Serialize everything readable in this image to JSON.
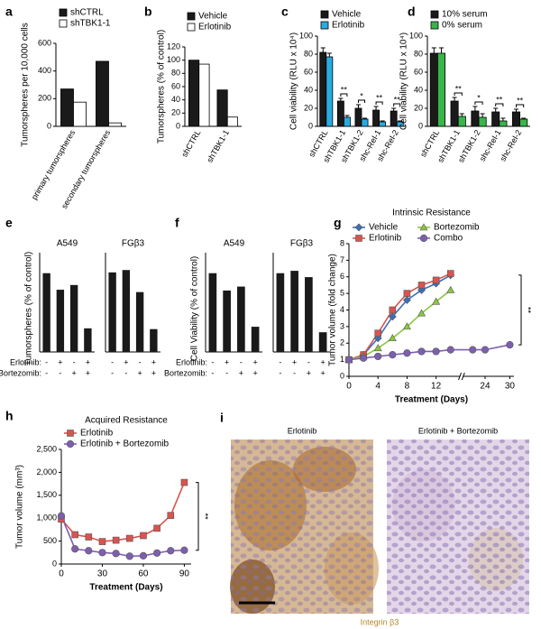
{
  "chart_data": [
    {
      "type": "bar",
      "label": "a",
      "ylabel": "Tumorspheres per 10,000 cells",
      "categories": [
        "primary tumorspheres",
        "secondary tumorspheres"
      ],
      "series": [
        {
          "name": "shCTRL",
          "color": "#1a1a1a",
          "values": [
            270,
            470
          ]
        },
        {
          "name": "shTBK1-1",
          "color": "#ffffff",
          "values": [
            175,
            25
          ]
        }
      ],
      "ylim": [
        0,
        600
      ],
      "yticks": [
        0,
        200,
        400,
        600
      ]
    },
    {
      "type": "bar",
      "label": "b",
      "ylabel": "Tumorspheres (% of control)",
      "categories": [
        "shCTRL",
        "shTBK1-1"
      ],
      "series": [
        {
          "name": "Vehicle",
          "color": "#1a1a1a",
          "values": [
            100,
            55
          ]
        },
        {
          "name": "Erlotinib",
          "color": "#ffffff",
          "values": [
            94,
            14
          ]
        }
      ],
      "ylim": [
        0,
        120
      ],
      "yticks": [
        0,
        20,
        40,
        60,
        80,
        100,
        120
      ]
    },
    {
      "type": "bar",
      "label": "c",
      "ylabel": "Cell viability (RLU x 10⁴)",
      "categories": [
        "shCTRL",
        "shTBK1-1",
        "shTBK1-2",
        "shc-Rel-1",
        "shc-Rel-2"
      ],
      "series": [
        {
          "name": "Vehicle",
          "color": "#1a1a1a",
          "values": [
            82,
            28,
            20,
            18,
            17
          ],
          "errors": [
            5,
            3,
            4,
            4,
            3
          ]
        },
        {
          "name": "Erlotinib",
          "color": "#29abe2",
          "values": [
            77,
            10,
            8,
            5,
            5
          ],
          "errors": [
            4,
            2,
            1,
            1,
            1
          ]
        }
      ],
      "significance": [
        null,
        "**",
        "*",
        "**",
        "**"
      ],
      "ylim": [
        0,
        100
      ],
      "yticks": [
        0,
        20,
        40,
        60,
        80,
        100
      ]
    },
    {
      "type": "bar",
      "label": "d",
      "ylabel": "Cell viability (RLU x 10⁴)",
      "categories": [
        "shCTRL",
        "shTBK1-1",
        "shTBK1-2",
        "shc-Rel-1",
        "shc-Rel-2"
      ],
      "series": [
        {
          "name": "10% serum",
          "color": "#1a1a1a",
          "values": [
            81,
            28,
            17,
            16,
            16
          ],
          "errors": [
            6,
            4,
            5,
            4,
            3
          ]
        },
        {
          "name": "0% serum",
          "color": "#39b54a",
          "values": [
            81,
            11,
            10,
            6,
            8
          ],
          "errors": [
            6,
            3,
            4,
            3,
            1
          ]
        }
      ],
      "significance": [
        null,
        "**",
        "*",
        "**",
        "**"
      ],
      "ylim": [
        0,
        100
      ],
      "yticks": [
        0,
        20,
        40,
        60,
        80,
        100
      ]
    },
    {
      "type": "bar",
      "label": "e",
      "ylabel": "Tumorspheres (% of control)",
      "color": "#1a1a1a",
      "ylim": [
        0,
        110
      ],
      "panels": [
        {
          "title": "A549",
          "values": [
            100,
            79,
            85,
            30
          ]
        },
        {
          "title": "FGβ3",
          "values": [
            101,
            104,
            76,
            29
          ]
        }
      ],
      "conditions": [
        {
          "name": "Erlotinib:",
          "signs": [
            "-",
            "+",
            "-",
            "+"
          ]
        },
        {
          "name": "Bortezomib:",
          "signs": [
            "-",
            "-",
            "+",
            "+"
          ]
        }
      ]
    },
    {
      "type": "bar",
      "label": "f",
      "ylabel": "Cell Viability (% of control)",
      "color": "#1a1a1a",
      "ylim": [
        0,
        110
      ],
      "panels": [
        {
          "title": "A549",
          "values": [
            100,
            78,
            83,
            32
          ]
        },
        {
          "title": "FGβ3",
          "values": [
            100,
            103,
            95,
            25
          ]
        }
      ],
      "conditions": [
        {
          "name": "Erlotinib:",
          "signs": [
            "-",
            "+",
            "-",
            "+"
          ]
        },
        {
          "name": "Bortezomib:",
          "signs": [
            "-",
            "-",
            "+",
            "+"
          ]
        }
      ]
    },
    {
      "type": "line",
      "label": "g",
      "title": "Intrinsic Resistance",
      "ylabel": "Tumor volume (fold change)",
      "xlabel": "Treatment (Days)",
      "x": [
        0,
        2,
        4,
        6,
        8,
        10,
        12,
        14,
        21,
        24,
        30
      ],
      "series": [
        {
          "name": "Vehicle",
          "color": "#3b6fb6",
          "marker": "diamond",
          "values": [
            1,
            1.3,
            2.3,
            3.6,
            4.6,
            5.2,
            5.6,
            6.1,
            null,
            null,
            null
          ]
        },
        {
          "name": "Erlotinib",
          "color": "#d9534f",
          "marker": "square",
          "values": [
            1,
            1.3,
            2.6,
            4.0,
            5.0,
            5.5,
            5.8,
            6.2,
            null,
            null,
            null
          ]
        },
        {
          "name": "Bortezomib",
          "color": "#8cc63f",
          "marker": "triangle",
          "values": [
            1,
            1.2,
            1.7,
            2.3,
            3.0,
            3.8,
            4.5,
            5.2,
            null,
            null,
            null
          ]
        },
        {
          "name": "Combo",
          "color": "#7d5fb0",
          "marker": "circle",
          "values": [
            1,
            1.1,
            1.2,
            1.3,
            1.4,
            1.5,
            1.5,
            1.6,
            1.6,
            1.6,
            1.9
          ]
        }
      ],
      "xlim": [
        0,
        31
      ],
      "xbreak": [
        15,
        19
      ],
      "xticks": [
        0,
        4,
        8,
        12,
        24,
        30
      ],
      "ylim": [
        0,
        8
      ],
      "yticks": [
        0,
        1,
        2,
        3,
        4,
        5,
        6,
        7,
        8
      ],
      "legend_columns": 2,
      "significance": "**"
    },
    {
      "type": "line",
      "label": "h",
      "title": "Acquired Resistance",
      "ylabel": "Tumor volume (mm³)",
      "xlabel": "Treatment (Days)",
      "x": [
        0,
        10,
        20,
        30,
        40,
        50,
        60,
        70,
        80,
        90
      ],
      "series": [
        {
          "name": "Erlotinib",
          "color": "#d9534f",
          "marker": "square",
          "values": [
            980,
            640,
            590,
            490,
            520,
            560,
            620,
            780,
            1060,
            1780
          ]
        },
        {
          "name": "Erlotinib + Bortezomib",
          "color": "#7d5fb0",
          "marker": "circle",
          "values": [
            1050,
            330,
            290,
            250,
            230,
            170,
            180,
            240,
            290,
            300
          ]
        }
      ],
      "xlim": [
        0,
        95
      ],
      "xticks": [
        0,
        30,
        60,
        90
      ],
      "ylim": [
        0,
        2500
      ],
      "yticks": [
        0,
        500,
        {
          "value": 1000,
          "label": "1,000"
        },
        {
          "value": 1500,
          "label": "1,500"
        },
        {
          "value": 2000,
          "label": "2,000"
        },
        {
          "value": 2500,
          "label": "2,500"
        }
      ],
      "legend_columns": 1,
      "significance": "**"
    }
  ],
  "panel_i": {
    "label": "i",
    "images": [
      {
        "title": "Erlotinib"
      },
      {
        "title": "Erlotinib + Bortezomib"
      }
    ],
    "stain": "Integrin β3"
  }
}
